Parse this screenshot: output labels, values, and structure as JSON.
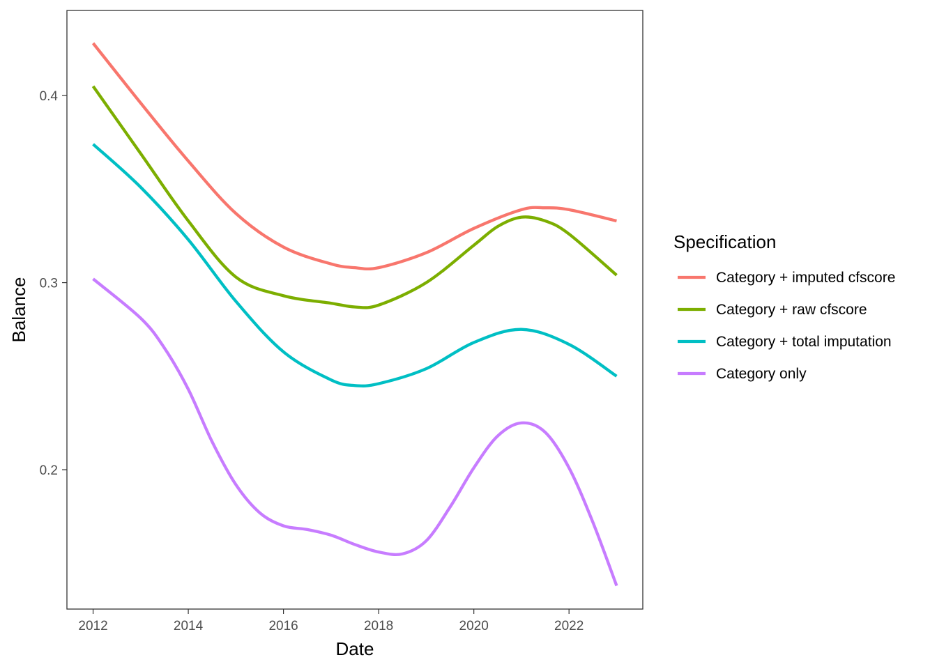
{
  "chart_data": {
    "type": "line",
    "xlabel": "Date",
    "ylabel": "Balance",
    "xlim": [
      2011.45,
      2023.55
    ],
    "ylim": [
      0.1255,
      0.4455
    ],
    "x_ticks": [
      2012,
      2014,
      2016,
      2018,
      2020,
      2022
    ],
    "x_tick_labels": [
      "2012",
      "2014",
      "2016",
      "2018",
      "2020",
      "2022"
    ],
    "y_ticks": [
      0.2,
      0.3,
      0.4
    ],
    "y_tick_labels": [
      "0.2",
      "0.3",
      "0.4"
    ],
    "grid": false,
    "legend": {
      "title": "Specification",
      "position": "right"
    },
    "series": [
      {
        "name": "Category + imputed cfscore",
        "color": "#F8766D",
        "x": [
          2012,
          2013,
          2014,
          2015,
          2016,
          2017,
          2017.5,
          2018,
          2019,
          2020,
          2021,
          2021.5,
          2022,
          2023
        ],
        "values": [
          0.428,
          0.396,
          0.365,
          0.337,
          0.319,
          0.31,
          0.308,
          0.308,
          0.316,
          0.329,
          0.339,
          0.34,
          0.339,
          0.333
        ]
      },
      {
        "name": "Category + raw cfscore",
        "color": "#7CAE00",
        "x": [
          2012,
          2013,
          2014,
          2015,
          2016,
          2017,
          2017.5,
          2018,
          2019,
          2020,
          2020.5,
          2021,
          2021.5,
          2022,
          2023
        ],
        "values": [
          0.405,
          0.369,
          0.333,
          0.303,
          0.293,
          0.289,
          0.287,
          0.288,
          0.3,
          0.32,
          0.33,
          0.335,
          0.333,
          0.326,
          0.304
        ]
      },
      {
        "name": "Category + total imputation",
        "color": "#00BFC4",
        "x": [
          2012,
          2013,
          2014,
          2015,
          2016,
          2017,
          2017.5,
          2018,
          2019,
          2020,
          2021,
          2022,
          2023
        ],
        "values": [
          0.374,
          0.351,
          0.323,
          0.29,
          0.263,
          0.248,
          0.245,
          0.246,
          0.254,
          0.268,
          0.275,
          0.267,
          0.25
        ]
      },
      {
        "name": "Category only",
        "color": "#C77CFF",
        "x": [
          2012,
          2013,
          2013.5,
          2014,
          2014.5,
          2015,
          2015.5,
          2016,
          2016.5,
          2017,
          2017.5,
          2018,
          2018.5,
          2019,
          2019.5,
          2020,
          2020.5,
          2021,
          2021.5,
          2022,
          2022.5,
          2023
        ],
        "values": [
          0.302,
          0.281,
          0.265,
          0.243,
          0.215,
          0.192,
          0.177,
          0.17,
          0.168,
          0.165,
          0.16,
          0.156,
          0.155,
          0.162,
          0.18,
          0.201,
          0.218,
          0.225,
          0.22,
          0.201,
          0.172,
          0.138
        ]
      }
    ]
  }
}
